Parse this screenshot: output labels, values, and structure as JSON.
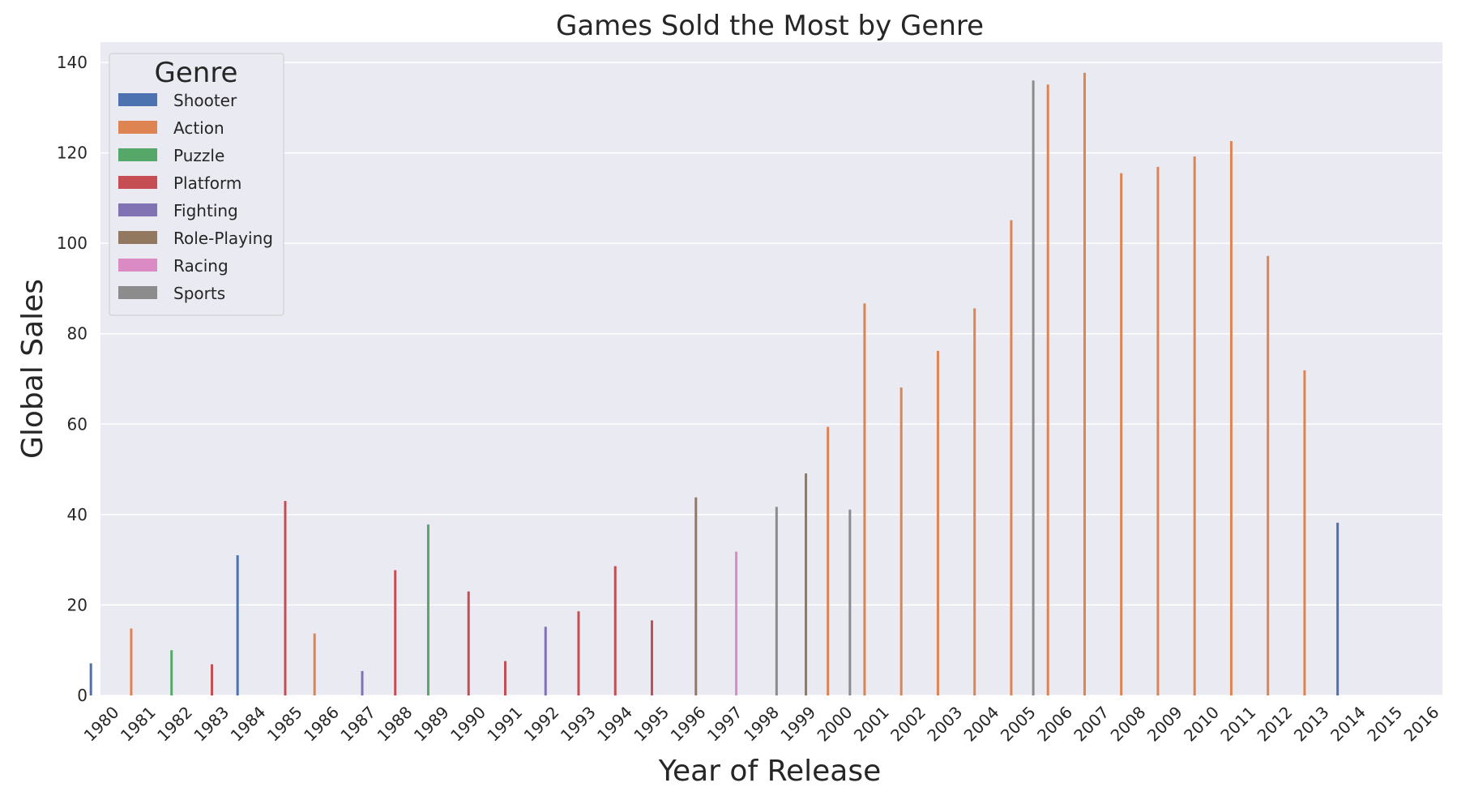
{
  "chart_data": {
    "type": "bar",
    "title": "Games Sold the Most by Genre",
    "xlabel": "Year of Release",
    "ylabel": "Global Sales",
    "ylim": [
      0,
      142
    ],
    "yticks": [
      0,
      20,
      40,
      60,
      80,
      100,
      120,
      140
    ],
    "grid": true,
    "legend": {
      "title": "Genre",
      "position": "top-left"
    },
    "genres": [
      "Shooter",
      "Action",
      "Puzzle",
      "Platform",
      "Fighting",
      "Role-Playing",
      "Racing",
      "Sports"
    ],
    "colors": {
      "Shooter": "#4c72b0",
      "Action": "#dd8452",
      "Puzzle": "#55a868",
      "Platform": "#c44e52",
      "Fighting": "#8172b3",
      "Role-Playing": "#937860",
      "Racing": "#da8bc3",
      "Sports": "#8c8c8c"
    },
    "categories": [
      "1980",
      "1981",
      "1982",
      "1983",
      "1984",
      "1985",
      "1986",
      "1987",
      "1988",
      "1989",
      "1990",
      "1991",
      "1992",
      "1993",
      "1994",
      "1995",
      "1996",
      "1997",
      "1998",
      "1999",
      "2000",
      "2001",
      "2002",
      "2003",
      "2004",
      "2005",
      "2006",
      "2007",
      "2008",
      "2009",
      "2010",
      "2011",
      "2012",
      "2013",
      "2014",
      "2015",
      "2016"
    ],
    "bars": [
      {
        "year": "1980",
        "genre": "Shooter",
        "value": 7.1
      },
      {
        "year": "1981",
        "genre": "Action",
        "value": 14.8
      },
      {
        "year": "1982",
        "genre": "Puzzle",
        "value": 10.0
      },
      {
        "year": "1983",
        "genre": "Platform",
        "value": 6.9
      },
      {
        "year": "1984",
        "genre": "Shooter",
        "value": 31.0
      },
      {
        "year": "1985",
        "genre": "Platform",
        "value": 43.0
      },
      {
        "year": "1986",
        "genre": "Action",
        "value": 13.7
      },
      {
        "year": "1987",
        "genre": "Fighting",
        "value": 5.4
      },
      {
        "year": "1988",
        "genre": "Platform",
        "value": 27.7
      },
      {
        "year": "1989",
        "genre": "Puzzle",
        "value": 37.8
      },
      {
        "year": "1990",
        "genre": "Platform",
        "value": 23.0
      },
      {
        "year": "1991",
        "genre": "Platform",
        "value": 7.6
      },
      {
        "year": "1992",
        "genre": "Fighting",
        "value": 15.2
      },
      {
        "year": "1993",
        "genre": "Platform",
        "value": 18.6
      },
      {
        "year": "1994",
        "genre": "Platform",
        "value": 28.6
      },
      {
        "year": "1995",
        "genre": "Platform",
        "value": 16.6
      },
      {
        "year": "1996",
        "genre": "Role-Playing",
        "value": 43.8
      },
      {
        "year": "1997",
        "genre": "Racing",
        "value": 31.8
      },
      {
        "year": "1998",
        "genre": "Sports",
        "value": 41.7
      },
      {
        "year": "1999",
        "genre": "Role-Playing",
        "value": 49.1
      },
      {
        "year": "2000",
        "genre": "Sports",
        "value": 41.1
      },
      {
        "year": "2000",
        "genre": "Action",
        "value": 59.4
      },
      {
        "year": "2001",
        "genre": "Action",
        "value": 86.7
      },
      {
        "year": "2002",
        "genre": "Action",
        "value": 68.1
      },
      {
        "year": "2003",
        "genre": "Action",
        "value": 76.2
      },
      {
        "year": "2004",
        "genre": "Action",
        "value": 85.6
      },
      {
        "year": "2005",
        "genre": "Sports",
        "value": 136.0
      },
      {
        "year": "2005",
        "genre": "Action",
        "value": 105.1
      },
      {
        "year": "2006",
        "genre": "Action",
        "value": 135.1
      },
      {
        "year": "2007",
        "genre": "Action",
        "value": 137.7
      },
      {
        "year": "2008",
        "genre": "Action",
        "value": 115.5
      },
      {
        "year": "2009",
        "genre": "Action",
        "value": 116.9
      },
      {
        "year": "2010",
        "genre": "Action",
        "value": 119.2
      },
      {
        "year": "2011",
        "genre": "Action",
        "value": 122.6
      },
      {
        "year": "2012",
        "genre": "Action",
        "value": 97.2
      },
      {
        "year": "2013",
        "genre": "Action",
        "value": 71.9
      },
      {
        "year": "2014",
        "genre": "Shooter",
        "value": 38.2
      }
    ]
  }
}
